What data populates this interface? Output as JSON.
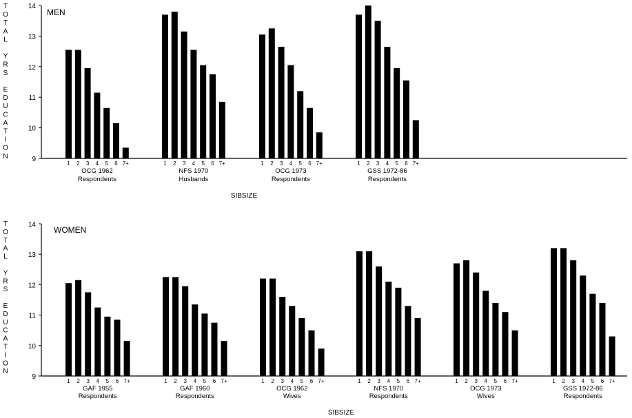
{
  "chart_data": [
    {
      "type": "bar",
      "title": "MEN",
      "ylabel": "TOTAL YRS EDUCATION",
      "xlabel": "SIBSIZE",
      "ylim": [
        9,
        14
      ],
      "yticks": [
        "9",
        "10",
        "11",
        "12",
        "13",
        "14"
      ],
      "categories": [
        "1",
        "2",
        "3",
        "4",
        "5",
        "6",
        "7+"
      ],
      "groups": [
        {
          "label1": "OCG 1962",
          "label2": "Respondents",
          "values": [
            12.55,
            12.55,
            11.95,
            11.15,
            10.65,
            10.15,
            9.35
          ]
        },
        {
          "label1": "NFS 1970",
          "label2": "Husbands",
          "values": [
            13.7,
            13.8,
            13.15,
            12.55,
            12.05,
            11.75,
            10.85
          ]
        },
        {
          "label1": "OCG 1973",
          "label2": "Respondents",
          "values": [
            13.05,
            13.25,
            12.65,
            12.05,
            11.2,
            10.65,
            9.85
          ]
        },
        {
          "label1": "GSS 1972-86",
          "label2": "Respondents",
          "values": [
            13.7,
            14.0,
            13.5,
            12.65,
            11.95,
            11.55,
            10.25
          ]
        }
      ],
      "bar_color": "#000000"
    },
    {
      "type": "bar",
      "title": "WOMEN",
      "ylabel": "TOTAL YRS EDUCATION",
      "xlabel": "SIBSIZE",
      "ylim": [
        9,
        14
      ],
      "yticks": [
        "9",
        "10",
        "11",
        "12",
        "13",
        "14"
      ],
      "categories": [
        "1",
        "2",
        "3",
        "4",
        "5",
        "6",
        "7+"
      ],
      "groups": [
        {
          "label1": "GAF 1955",
          "label2": "Respondents",
          "values": [
            12.05,
            12.15,
            11.75,
            11.25,
            10.95,
            10.85,
            10.15
          ]
        },
        {
          "label1": "GAF 1960",
          "label2": "Respondents",
          "values": [
            12.25,
            12.25,
            11.95,
            11.35,
            11.05,
            10.75,
            10.15
          ]
        },
        {
          "label1": "OCG 1962",
          "label2": "Wives",
          "values": [
            12.2,
            12.2,
            11.6,
            11.3,
            10.9,
            10.5,
            9.9
          ]
        },
        {
          "label1": "NFS 1970",
          "label2": "Respondents",
          "values": [
            13.1,
            13.1,
            12.6,
            12.1,
            11.9,
            11.3,
            10.9
          ]
        },
        {
          "label1": "OCG 1973",
          "label2": "Wives",
          "values": [
            12.7,
            12.8,
            12.4,
            11.8,
            11.4,
            11.1,
            10.5
          ]
        },
        {
          "label1": "GSS 1972-86",
          "label2": "Respondents",
          "values": [
            13.2,
            13.2,
            12.8,
            12.3,
            11.7,
            11.4,
            10.3
          ]
        }
      ],
      "bar_color": "#000000"
    }
  ]
}
